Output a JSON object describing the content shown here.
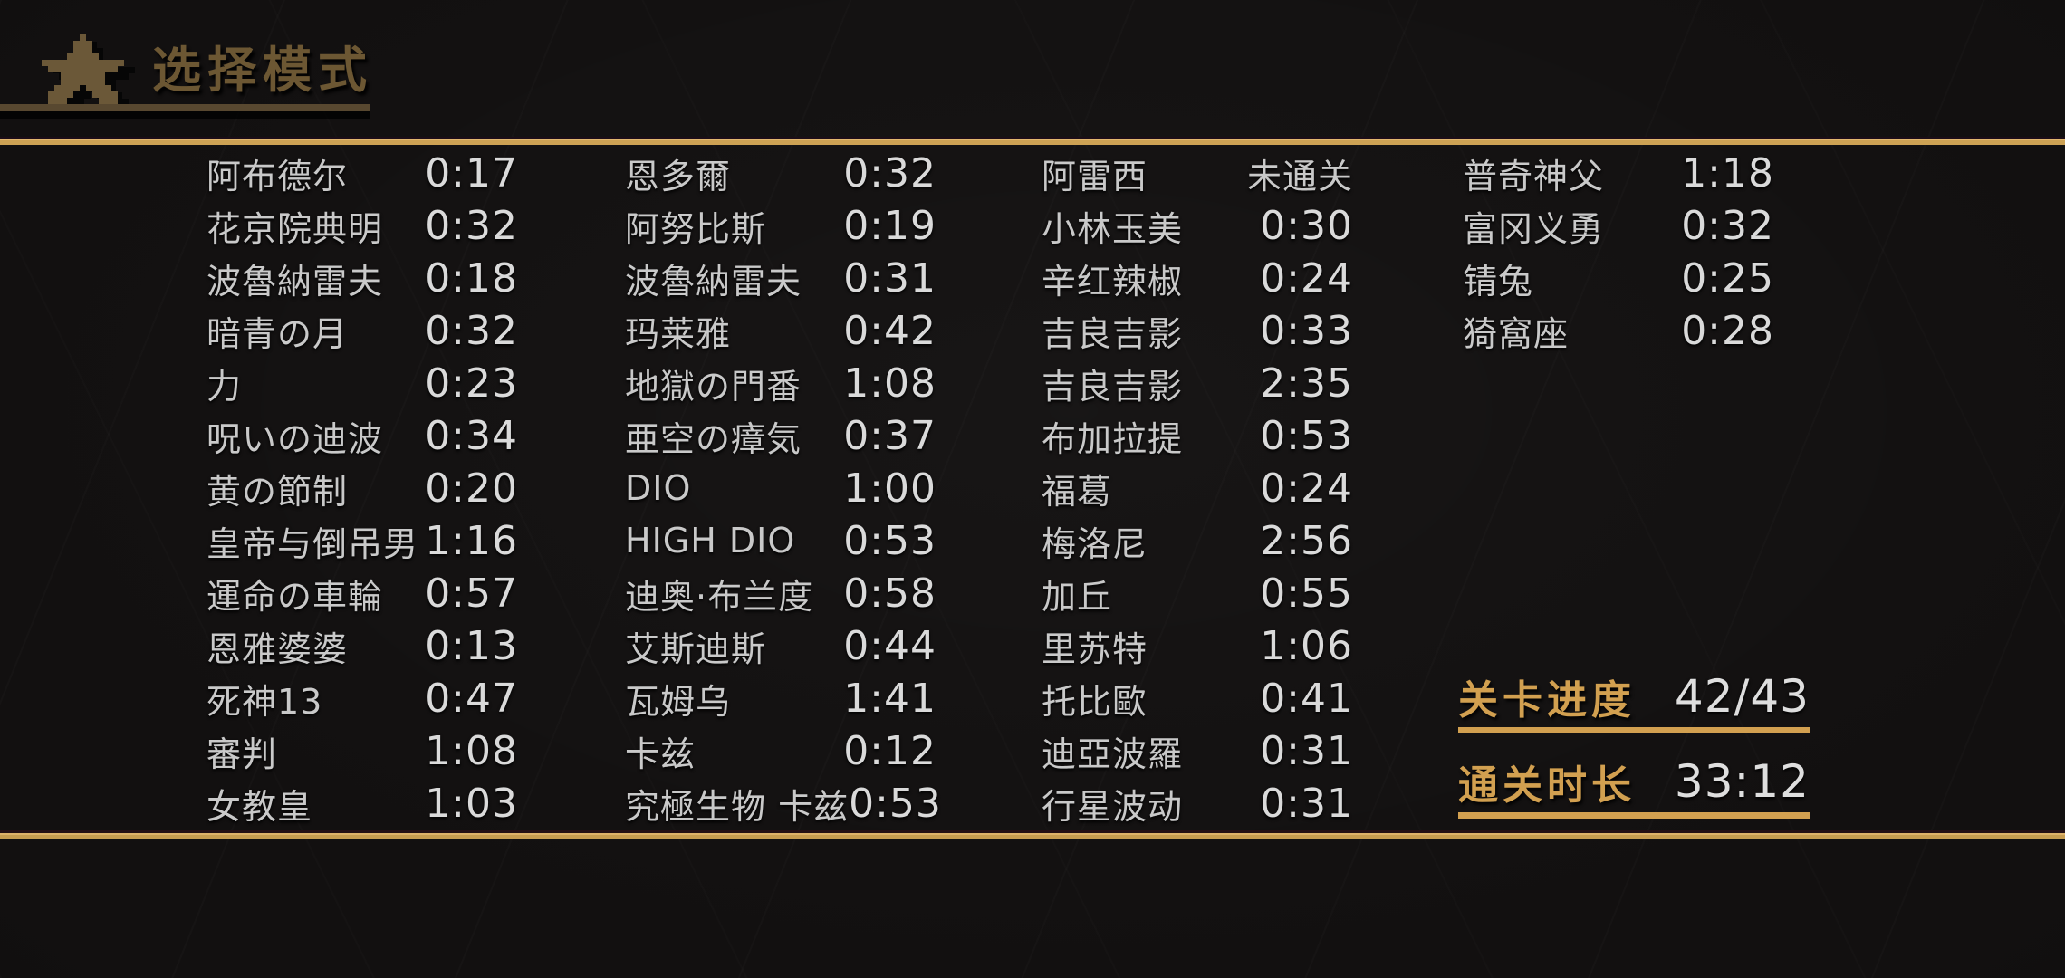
{
  "header": {
    "icon": "pixel-star-icon",
    "title": "选择模式"
  },
  "columns": [
    {
      "items": [
        {
          "name": "阿布德尔",
          "time": "0:17"
        },
        {
          "name": "花京院典明",
          "time": "0:32"
        },
        {
          "name": "波魯納雷夫",
          "time": "0:18"
        },
        {
          "name": "暗青の月",
          "time": "0:32"
        },
        {
          "name": "力",
          "time": "0:23"
        },
        {
          "name": "呪いの迪波",
          "time": "0:34"
        },
        {
          "name": "黄の節制",
          "time": "0:20"
        },
        {
          "name": "皇帝与倒吊男",
          "time": "1:16"
        },
        {
          "name": "運命の車輪",
          "time": "0:57"
        },
        {
          "name": "恩雅婆婆",
          "time": "0:13"
        },
        {
          "name": "死神13",
          "time": "0:47"
        },
        {
          "name": "審判",
          "time": "1:08"
        },
        {
          "name": "女教皇",
          "time": "1:03"
        }
      ]
    },
    {
      "items": [
        {
          "name": "恩多爾",
          "time": "0:32"
        },
        {
          "name": "阿努比斯",
          "time": "0:19"
        },
        {
          "name": "波魯納雷夫",
          "time": "0:31"
        },
        {
          "name": "玛莱雅",
          "time": "0:42"
        },
        {
          "name": "地獄の門番",
          "time": "1:08"
        },
        {
          "name": "亜空の瘴気",
          "time": "0:37"
        },
        {
          "name": "DIO",
          "time": "1:00"
        },
        {
          "name": "HIGH DIO",
          "time": "0:53"
        },
        {
          "name": "迪奥·布兰度",
          "time": "0:58"
        },
        {
          "name": "艾斯迪斯",
          "time": "0:44"
        },
        {
          "name": "瓦姆乌",
          "time": "1:41"
        },
        {
          "name": "卡兹",
          "time": "0:12"
        },
        {
          "name": "究極生物 卡兹",
          "time": "0:53"
        }
      ]
    },
    {
      "items": [
        {
          "name": "阿雷西",
          "time": "未通关"
        },
        {
          "name": "小林玉美",
          "time": "0:30"
        },
        {
          "name": "辛红辣椒",
          "time": "0:24"
        },
        {
          "name": "吉良吉影",
          "time": "0:33"
        },
        {
          "name": "吉良吉影",
          "time": "2:35"
        },
        {
          "name": "布加拉提",
          "time": "0:53"
        },
        {
          "name": "福葛",
          "time": "0:24"
        },
        {
          "name": "梅洛尼",
          "time": "2:56"
        },
        {
          "name": "加丘",
          "time": "0:55"
        },
        {
          "name": "里苏特",
          "time": "1:06"
        },
        {
          "name": "托比歐",
          "time": "0:41"
        },
        {
          "name": "迪亞波羅",
          "time": "0:31"
        },
        {
          "name": "行星波动",
          "time": "0:31"
        }
      ]
    },
    {
      "items": [
        {
          "name": "普奇神父",
          "time": "1:18"
        },
        {
          "name": "富冈义勇",
          "time": "0:32"
        },
        {
          "name": "锖兔",
          "time": "0:25"
        },
        {
          "name": "猗窩座",
          "time": "0:28"
        }
      ]
    }
  ],
  "status": {
    "not_cleared_text": "未通关"
  },
  "stats": {
    "progress_label": "关卡进度",
    "progress_value": "42/43",
    "duration_label": "通关时长",
    "duration_value": "33:12"
  },
  "colors": {
    "accent_gold": "#cda254",
    "dim_gold": "#6c5733",
    "bar_gold": "#584830",
    "stats_gold": "#d2a050",
    "name_text": "#c9c9c9",
    "time_text": "#dadada",
    "background": "#121010"
  }
}
